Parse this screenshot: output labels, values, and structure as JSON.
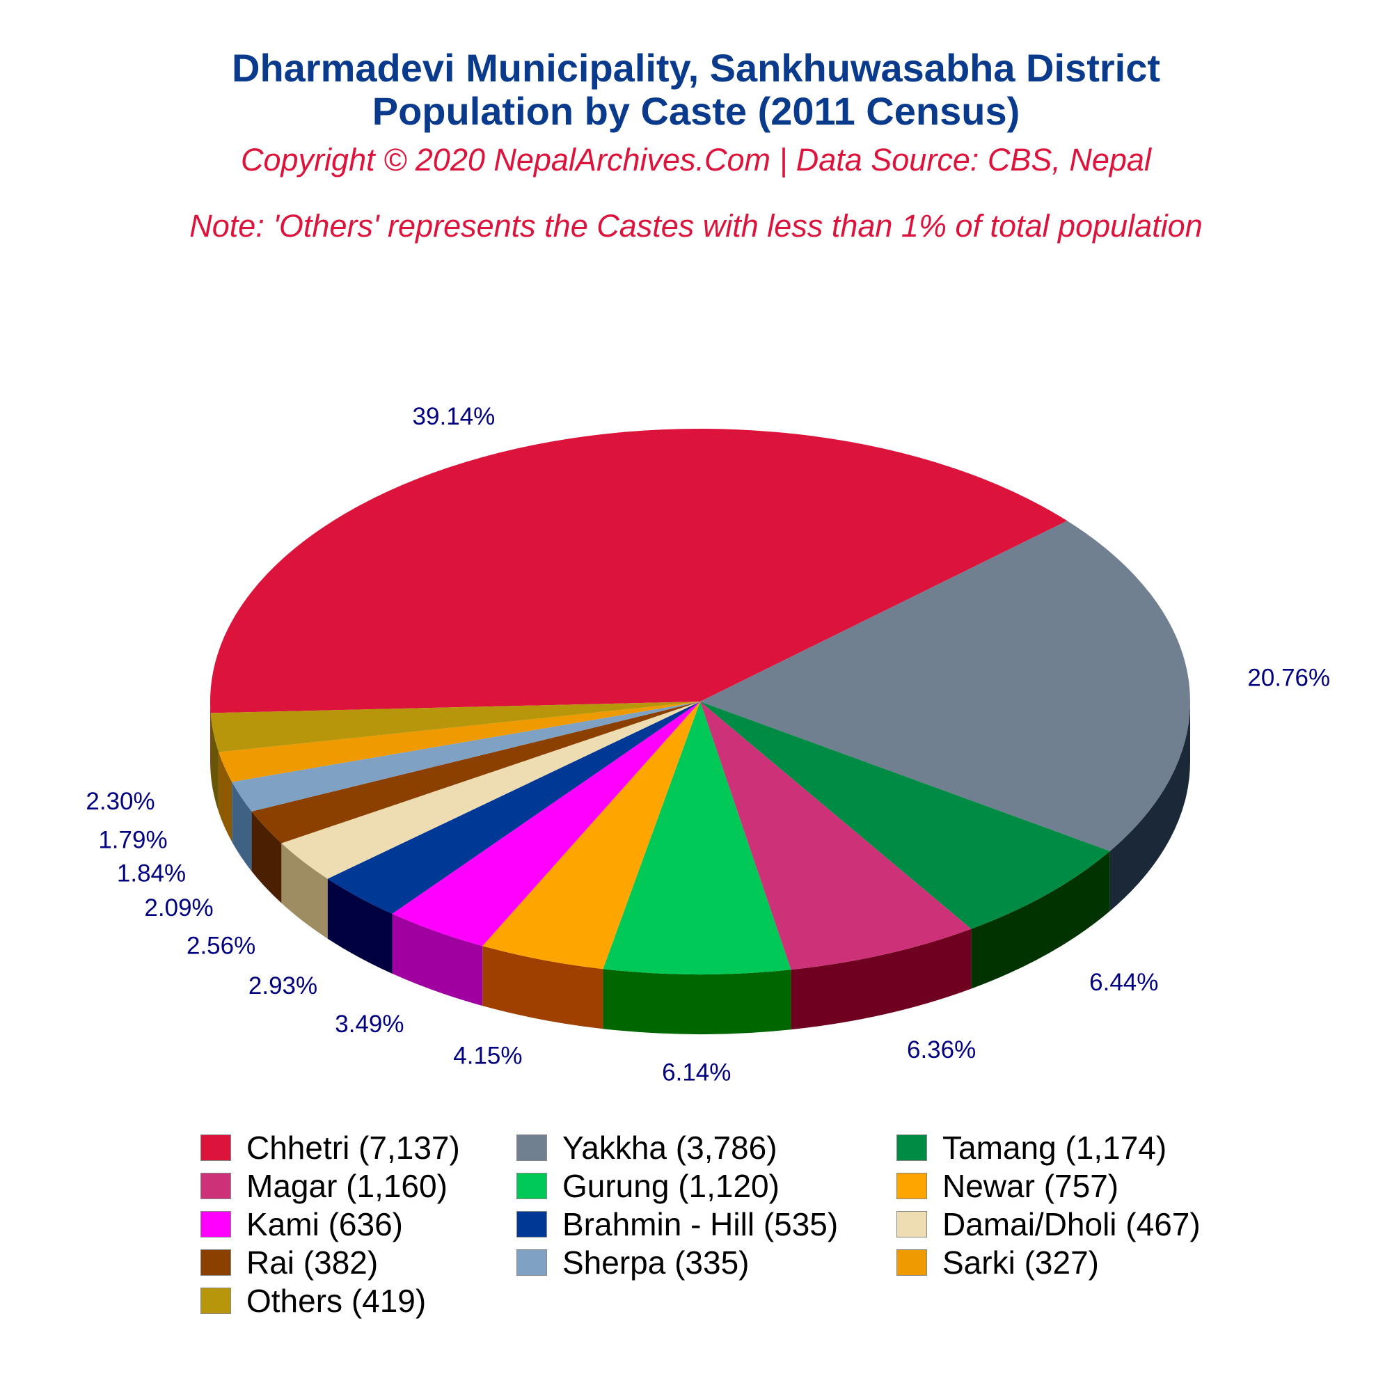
{
  "header": {
    "title_line1": "Dharmadevi Municipality, Sankhuwasabha District",
    "title_line2": "Population by Caste (2011 Census)",
    "copyright": "Copyright © 2020 NepalArchives.Com | Data Source: CBS, Nepal",
    "note": "Note: 'Others' represents the Castes with less than 1% of total population"
  },
  "chart_data": {
    "type": "pie",
    "style": "3d",
    "slices": [
      {
        "name": "Chhetri",
        "value": 7137,
        "percent_label": "39.14%",
        "legend_label": "Chhetri (7,137)",
        "color": "#dc143c",
        "side_color": "#8b0d26"
      },
      {
        "name": "Yakkha",
        "value": 3786,
        "percent_label": "20.76%",
        "legend_label": "Yakkha (3,786)",
        "color": "#708090",
        "side_color": "#1a2838"
      },
      {
        "name": "Tamang",
        "value": 1174,
        "percent_label": "6.44%",
        "legend_label": "Tamang (1,174)",
        "color": "#008b45",
        "side_color": "#003300"
      },
      {
        "name": "Magar",
        "value": 1160,
        "percent_label": "6.36%",
        "legend_label": "Magar (1,160)",
        "color": "#cd3278",
        "side_color": "#700020"
      },
      {
        "name": "Gurung",
        "value": 1120,
        "percent_label": "6.14%",
        "legend_label": "Gurung (1,120)",
        "color": "#00c957",
        "side_color": "#006600"
      },
      {
        "name": "Newar",
        "value": 757,
        "percent_label": "4.15%",
        "legend_label": "Newar (757)",
        "color": "#ffa500",
        "side_color": "#a04000"
      },
      {
        "name": "Kami",
        "value": 636,
        "percent_label": "3.49%",
        "legend_label": "Kami (636)",
        "color": "#ff00ff",
        "side_color": "#a000a0"
      },
      {
        "name": "Brahmin - Hill",
        "value": 535,
        "percent_label": "2.93%",
        "legend_label": "Brahmin - Hill (535)",
        "color": "#003896",
        "side_color": "#000040"
      },
      {
        "name": "Damai/Dholi",
        "value": 467,
        "percent_label": "2.56%",
        "legend_label": "Damai/Dholi (467)",
        "color": "#eedcb3",
        "side_color": "#9e8c63"
      },
      {
        "name": "Rai",
        "value": 382,
        "percent_label": "2.09%",
        "legend_label": "Rai (382)",
        "color": "#8b4000",
        "side_color": "#4a2000"
      },
      {
        "name": "Sherpa",
        "value": 335,
        "percent_label": "1.84%",
        "legend_label": "Sherpa (335)",
        "color": "#7ea1c4",
        "side_color": "#3e6184"
      },
      {
        "name": "Sarki",
        "value": 327,
        "percent_label": "1.79%",
        "legend_label": "Sarki (327)",
        "color": "#ee9a00",
        "side_color": "#8e5a00"
      },
      {
        "name": "Others",
        "value": 419,
        "percent_label": "2.30%",
        "legend_label": "Others (419)",
        "color": "#b8960c",
        "side_color": "#685606"
      }
    ],
    "label_color": "#000080",
    "legend_placement": "bottom"
  }
}
